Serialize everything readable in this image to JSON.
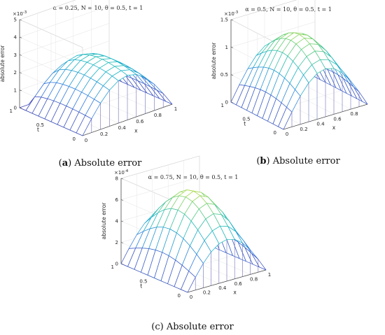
{
  "chart_data": [
    {
      "type": "surface",
      "title": "α = 0.25, N = 10, θ = 0.5, t = 1",
      "caption_letter": "a",
      "caption_text": "Absolute error",
      "xlabel": "x",
      "ylabel": "t",
      "zlabel": "absolute error",
      "z_exponent": "×10",
      "z_exponent_power": "-3",
      "zlim": [
        0,
        5
      ],
      "zticks": [
        "0",
        "1",
        "2",
        "3",
        "4",
        "5"
      ],
      "x_ticks": [
        "0",
        "0.2",
        "0.4",
        "0.6",
        "0.8",
        "1"
      ],
      "t_ticks": [
        "0",
        "0.5",
        "1"
      ],
      "grid_x": [
        0,
        0.1,
        0.2,
        0.3,
        0.4,
        0.5,
        0.6,
        0.7,
        0.8,
        0.9,
        1.0
      ],
      "grid_t": [
        0,
        0.1,
        0.2,
        0.3,
        0.4,
        0.5,
        0.6,
        0.7,
        0.8,
        0.9,
        1.0
      ],
      "peak": 4.6,
      "surface_model": "peak*sin(pi*x)*(1-t)^0.35*(0.55+0.45*t)"
    },
    {
      "type": "surface",
      "title": "α = 0.5, N = 10, θ = 0.5, t = 1",
      "caption_letter": "b",
      "caption_text": "Absolute error",
      "xlabel": "x",
      "ylabel": "t",
      "zlabel": "absolute error",
      "z_exponent": "×10",
      "z_exponent_power": "-3",
      "zlim": [
        0,
        1.5
      ],
      "zticks": [
        "0",
        "0.5",
        "1",
        "1.5"
      ],
      "x_ticks": [
        "0",
        "0.2",
        "0.4",
        "0.6",
        "0.8"
      ],
      "t_ticks": [
        "0",
        "0.5",
        "1"
      ],
      "grid_x": [
        0,
        0.1,
        0.2,
        0.3,
        0.4,
        0.5,
        0.6,
        0.7,
        0.8,
        0.9,
        1.0
      ],
      "grid_t": [
        0,
        0.1,
        0.2,
        0.3,
        0.4,
        0.5,
        0.6,
        0.7,
        0.8,
        0.9,
        1.0
      ],
      "peak": 1.25,
      "surface_model": "peak*sin(pi*x)*(0.7+0.3*sin(pi*t))"
    },
    {
      "type": "surface",
      "title": "α = 0.75, N = 10, θ = 0.5, t = 1",
      "caption_letter": "c",
      "caption_text": "Absolute error",
      "xlabel": "x",
      "ylabel": "t",
      "zlabel": "absolute error",
      "z_exponent": "×10",
      "z_exponent_power": "-4",
      "zlim": [
        0,
        8
      ],
      "zticks": [
        "0",
        "2",
        "4",
        "6",
        "8"
      ],
      "x_ticks": [
        "0",
        "0.2",
        "0.4",
        "0.6",
        "0.8",
        "1"
      ],
      "t_ticks": [
        "0",
        "0.5",
        "1"
      ],
      "grid_x": [
        0,
        0.1,
        0.2,
        0.3,
        0.4,
        0.5,
        0.6,
        0.7,
        0.8,
        0.9,
        1.0
      ],
      "grid_t": [
        0,
        0.1,
        0.2,
        0.3,
        0.4,
        0.5,
        0.6,
        0.7,
        0.8,
        0.9,
        1.0
      ],
      "peak": 7.1,
      "surface_model": "peak*sin(pi*x)*(0.55+0.45*sin(pi*t))"
    }
  ]
}
